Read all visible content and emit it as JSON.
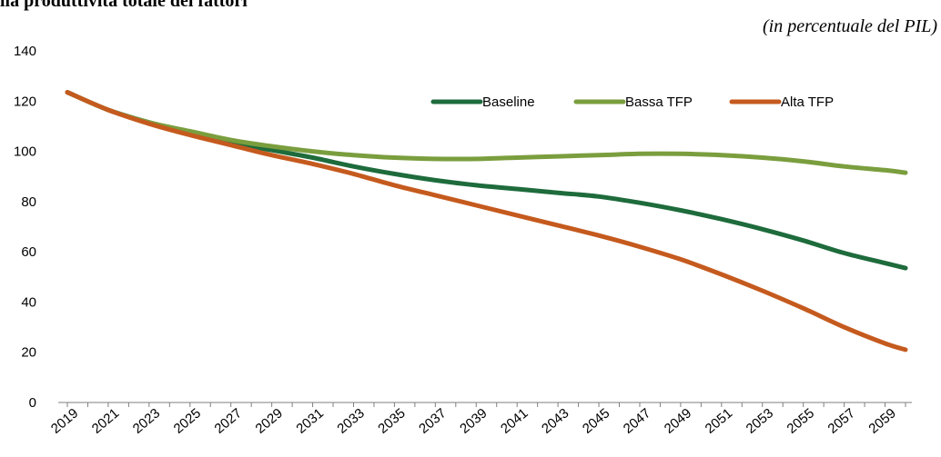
{
  "header": {
    "title": "lla produttività totale dei fattori",
    "subtitle": "(in percentuale del PIL)"
  },
  "chart_data": {
    "type": "line",
    "title": "lla produttività totale dei fattori",
    "subtitle": "(in percentuale del PIL)",
    "xlabel": "",
    "ylabel": "",
    "ylim": [
      0,
      140
    ],
    "yticks": [
      0,
      20,
      40,
      60,
      80,
      100,
      120,
      140
    ],
    "xlim": [
      2019,
      2060
    ],
    "xticks": [
      2019,
      2021,
      2023,
      2025,
      2027,
      2029,
      2031,
      2033,
      2035,
      2037,
      2039,
      2041,
      2043,
      2045,
      2047,
      2049,
      2051,
      2053,
      2055,
      2057,
      2059
    ],
    "grid": false,
    "legend_position": "top-right",
    "x": [
      2019,
      2021,
      2023,
      2025,
      2027,
      2029,
      2031,
      2033,
      2035,
      2037,
      2039,
      2041,
      2043,
      2045,
      2047,
      2049,
      2051,
      2053,
      2055,
      2057,
      2059,
      2060
    ],
    "series": [
      {
        "name": "Baseline",
        "color": "#1e6b3c",
        "values": [
          123.5,
          116.5,
          111.5,
          107.5,
          103.5,
          100.5,
          97.5,
          94.0,
          91.0,
          88.5,
          86.5,
          85.0,
          83.5,
          82.0,
          79.5,
          76.5,
          73.0,
          69.0,
          64.5,
          59.5,
          55.5,
          53.5
        ]
      },
      {
        "name": "Bassa TFP",
        "color": "#7a9e3e",
        "values": [
          123.5,
          116.5,
          111.5,
          108.0,
          104.5,
          102.0,
          100.0,
          98.5,
          97.5,
          97.0,
          97.0,
          97.5,
          98.0,
          98.5,
          99.0,
          99.0,
          98.5,
          97.5,
          96.0,
          94.0,
          92.5,
          91.5
        ]
      },
      {
        "name": "Alta TFP",
        "color": "#c55a1e",
        "values": [
          123.5,
          116.5,
          111.0,
          106.5,
          102.5,
          98.5,
          95.0,
          91.0,
          86.5,
          82.5,
          78.5,
          74.5,
          70.5,
          66.5,
          62.0,
          57.0,
          51.0,
          44.5,
          37.5,
          30.0,
          23.5,
          21.0
        ]
      }
    ]
  }
}
